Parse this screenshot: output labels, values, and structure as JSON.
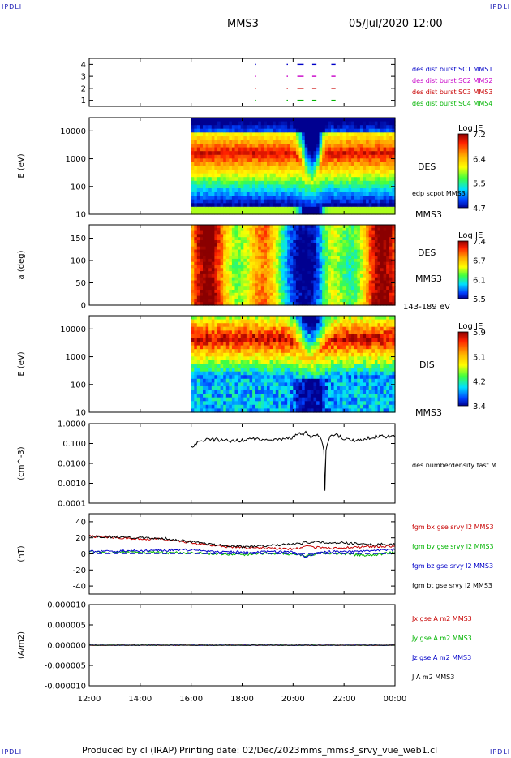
{
  "header": {
    "title": "MMS3",
    "date": "05/Jul/2020 12:00",
    "corner_label": "IPDLI"
  },
  "footer": {
    "produced": "Produced by cl (IRAP)",
    "printed": "Printing date: 02/Dec/2023",
    "file": "mms_mms3_srvy_vue_web1.cl"
  },
  "colors": {
    "sc1": "#0000c8",
    "sc2": "#c800c8",
    "sc3": "#c80000",
    "sc4": "#00b400",
    "bx": "#c80000",
    "by": "#00b400",
    "bz": "#0000c8",
    "bt": "#000000"
  },
  "chart_data": [
    {
      "id": "burst",
      "type": "scatter",
      "ylabel": "",
      "ylim": [
        0.5,
        4.5
      ],
      "ticks": [
        "1",
        "2",
        "3",
        "4"
      ],
      "legend": [
        {
          "label": "des dist burst SC1 MMS1",
          "color": "#0000c8"
        },
        {
          "label": "des dist burst SC2 MMS2",
          "color": "#c800c8"
        },
        {
          "label": "des dist burst SC3 MMS3",
          "color": "#c80000"
        },
        {
          "label": "des dist burst SC4 MMS4",
          "color": "#00b400"
        }
      ],
      "intervals": [
        [
          "18:30",
          "18:32"
        ],
        [
          "19:45",
          "19:47"
        ],
        [
          "20:10",
          "20:25"
        ],
        [
          "20:45",
          "20:55"
        ],
        [
          "21:30",
          "21:40"
        ]
      ]
    },
    {
      "id": "des_energy",
      "type": "heatmap",
      "ylabel": "E (eV)",
      "yscale": "log",
      "ylim": [
        10,
        30000
      ],
      "ticks": [
        "10",
        "100",
        "1000",
        "10000"
      ],
      "colorbar": {
        "label": "Log JE",
        "ticks": [
          "7.2",
          "6.4",
          "5.5",
          "4.7"
        ]
      },
      "labels": [
        "DES",
        "edp scpot MMS3",
        "MMS3"
      ],
      "data_start": "16:00"
    },
    {
      "id": "des_pitch",
      "type": "heatmap",
      "ylabel": "a (deg)",
      "ylim": [
        0,
        180
      ],
      "ticks": [
        "0",
        "50",
        "100",
        "150"
      ],
      "colorbar": {
        "label": "Log JE",
        "ticks": [
          "7.4",
          "6.7",
          "6.1",
          "5.5"
        ]
      },
      "labels": [
        "DES",
        "MMS3",
        "143-189 eV"
      ],
      "data_start": "16:00"
    },
    {
      "id": "dis_energy",
      "type": "heatmap",
      "ylabel": "E (eV)",
      "yscale": "log",
      "ylim": [
        10,
        30000
      ],
      "ticks": [
        "10",
        "100",
        "1000",
        "10000"
      ],
      "colorbar": {
        "label": "Log JE",
        "ticks": [
          "5.9",
          "5.1",
          "4.2",
          "3.4"
        ]
      },
      "labels": [
        "DIS",
        "MMS3"
      ],
      "data_start": "16:00"
    },
    {
      "id": "density",
      "type": "line",
      "ylabel": "(cm^-3)",
      "yscale": "log",
      "ylim": [
        0.0001,
        1
      ],
      "ticks": [
        "0.0001",
        "0.0010",
        "0.0100",
        "0.100",
        "1.0000"
      ],
      "series": [
        {
          "name": "des numberdensity fast M",
          "color": "#000000",
          "x": [
            "16:00",
            "16:30",
            "17:00",
            "17:30",
            "18:00",
            "18:30",
            "19:00",
            "19:30",
            "20:00",
            "20:15",
            "20:30",
            "20:45",
            "21:00",
            "21:10",
            "21:15",
            "21:20",
            "21:30",
            "21:45",
            "22:00",
            "22:30",
            "23:00",
            "23:30",
            "00:00"
          ],
          "y": [
            0.06,
            0.15,
            0.16,
            0.13,
            0.15,
            0.17,
            0.15,
            0.17,
            0.2,
            0.3,
            0.35,
            0.2,
            0.25,
            0.1,
            0.0005,
            0.07,
            0.3,
            0.25,
            0.15,
            0.14,
            0.2,
            0.25,
            0.2
          ]
        }
      ]
    },
    {
      "id": "bfield",
      "type": "line",
      "ylabel": "(nT)",
      "ylim": [
        -50,
        50
      ],
      "ticks": [
        "-40",
        "-20",
        "0",
        "20",
        "40"
      ],
      "series": [
        {
          "name": "fgm bx gse srvy l2 MMS3",
          "color": "#c80000",
          "x": [
            "12:00",
            "13:00",
            "14:00",
            "15:00",
            "15:30",
            "16:00",
            "17:00",
            "18:00",
            "19:00",
            "20:00",
            "20:30",
            "21:00",
            "21:30",
            "22:00",
            "23:00",
            "00:00"
          ],
          "y": [
            22,
            20,
            19,
            18,
            16,
            14,
            10,
            8,
            7,
            6,
            9,
            8,
            7,
            8,
            9,
            10
          ]
        },
        {
          "name": "fgm by gse srvy l2 MMS3",
          "color": "#00b400",
          "x": [
            "12:00",
            "14:00",
            "16:00",
            "17:00",
            "18:00",
            "19:00",
            "20:00",
            "20:30",
            "21:00",
            "22:00",
            "23:00",
            "00:00"
          ],
          "y": [
            2,
            2,
            1,
            0,
            -1,
            1,
            0,
            -3,
            1,
            0,
            -2,
            2
          ]
        },
        {
          "name": "fgm bz gse srvy l2 MMS3",
          "color": "#0000c8",
          "x": [
            "12:00",
            "14:00",
            "16:00",
            "17:00",
            "18:00",
            "19:00",
            "20:00",
            "20:30",
            "21:00",
            "22:00",
            "23:00",
            "00:00"
          ],
          "y": [
            3,
            4,
            5,
            3,
            2,
            3,
            2,
            -4,
            2,
            3,
            4,
            5
          ]
        },
        {
          "name": "fgm bt gse srvy l2 MMS3",
          "color": "#000000",
          "x": [
            "12:00",
            "13:00",
            "14:00",
            "15:00",
            "15:30",
            "16:00",
            "17:00",
            "18:00",
            "19:00",
            "20:00",
            "20:30",
            "21:00",
            "21:30",
            "22:00",
            "23:00",
            "00:00"
          ],
          "y": [
            22,
            21,
            20,
            19,
            17,
            15,
            11,
            9,
            10,
            12,
            14,
            15,
            13,
            14,
            12,
            12
          ]
        }
      ]
    },
    {
      "id": "current",
      "type": "line",
      "ylabel": "(A/m2)",
      "ylim": [
        -1e-05,
        1e-05
      ],
      "ticks": [
        "-0.000010",
        "-0.000005",
        "0.000000",
        "0.000005",
        "0.000010"
      ],
      "series": [
        {
          "name": "Jx gse A m2 MMS3",
          "color": "#c80000",
          "x": [
            "12:00",
            "00:00"
          ],
          "y": [
            0,
            0
          ]
        },
        {
          "name": "Jy gse A m2 MMS3",
          "color": "#00b400",
          "x": [
            "12:00",
            "00:00"
          ],
          "y": [
            0,
            0
          ]
        },
        {
          "name": "Jz gse A m2 MMS3",
          "color": "#0000c8",
          "x": [
            "12:00",
            "00:00"
          ],
          "y": [
            0,
            0
          ]
        },
        {
          "name": "J A m2 MMS3",
          "color": "#000000",
          "x": [
            "12:00",
            "00:00"
          ],
          "y": [
            0,
            0
          ]
        }
      ]
    }
  ],
  "time_axis": {
    "ticks": [
      "12:00",
      "14:00",
      "16:00",
      "18:00",
      "20:00",
      "22:00",
      "00:00"
    ]
  }
}
